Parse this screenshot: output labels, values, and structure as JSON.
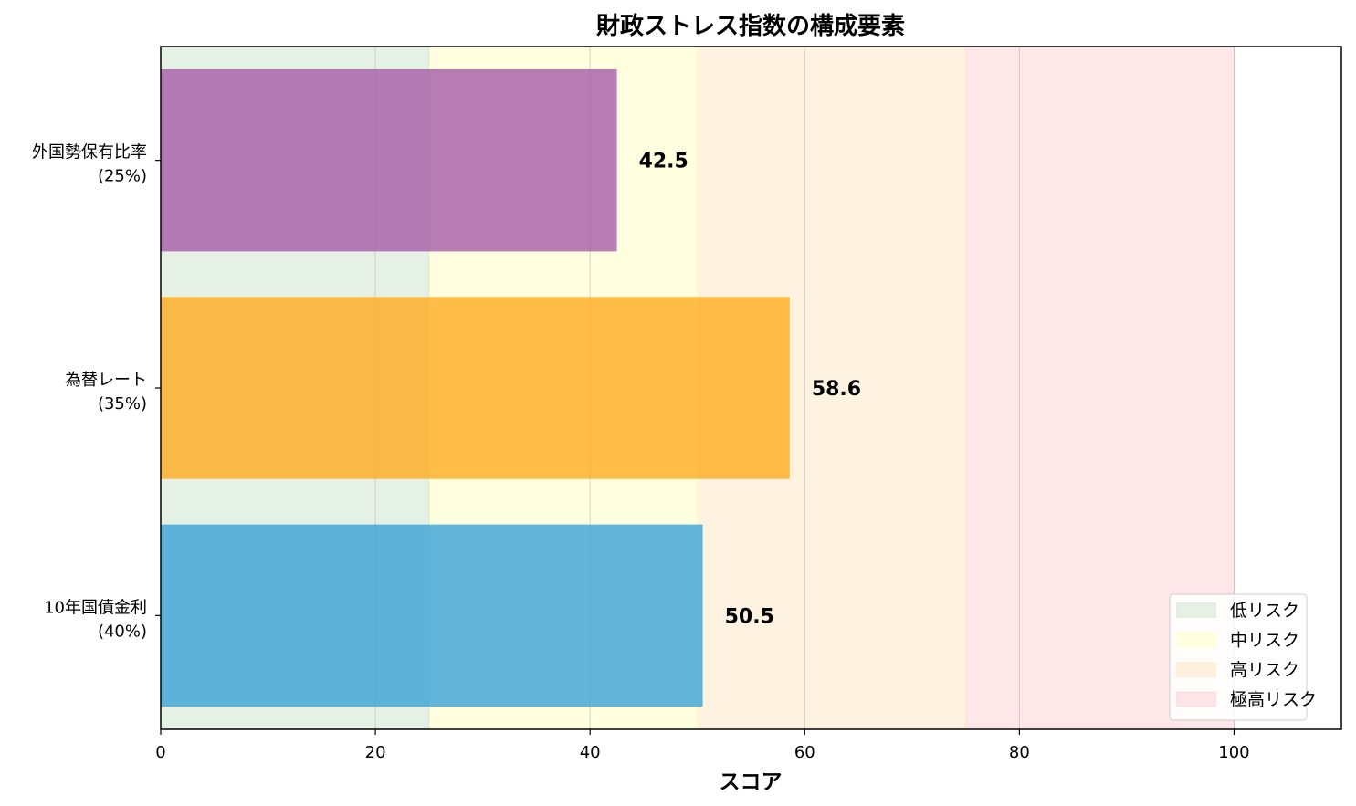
{
  "chart_data": {
    "type": "bar",
    "orientation": "horizontal",
    "title": "財政ストレス指数の構成要素",
    "xlabel": "スコア",
    "ylabel": "",
    "xlim": [
      0,
      110
    ],
    "xticks": [
      0,
      20,
      40,
      60,
      80,
      100
    ],
    "grid": "x",
    "categories": [
      {
        "name": "10年国債金利",
        "weight": "(40%)"
      },
      {
        "name": "為替レート",
        "weight": "(35%)"
      },
      {
        "name": "外国勢保有比率",
        "weight": "(25%)"
      }
    ],
    "values": [
      50.5,
      58.6,
      42.5
    ],
    "value_labels": [
      "50.5",
      "58.6",
      "42.5"
    ],
    "bar_colors": [
      "#3ba3d6",
      "#ffab1f",
      "#a55ba8"
    ],
    "zones": [
      {
        "label": "低リスク",
        "from": 0,
        "to": 25,
        "color": "#d5e8d4"
      },
      {
        "label": "中リスク",
        "from": 25,
        "to": 50,
        "color": "#ffffcc"
      },
      {
        "label": "高リスク",
        "from": 50,
        "to": 75,
        "color": "#fdebcc"
      },
      {
        "label": "極高リスク",
        "from": 75,
        "to": 100,
        "color": "#ffd5d8"
      }
    ],
    "legend": {
      "position": "bottom-right"
    }
  }
}
